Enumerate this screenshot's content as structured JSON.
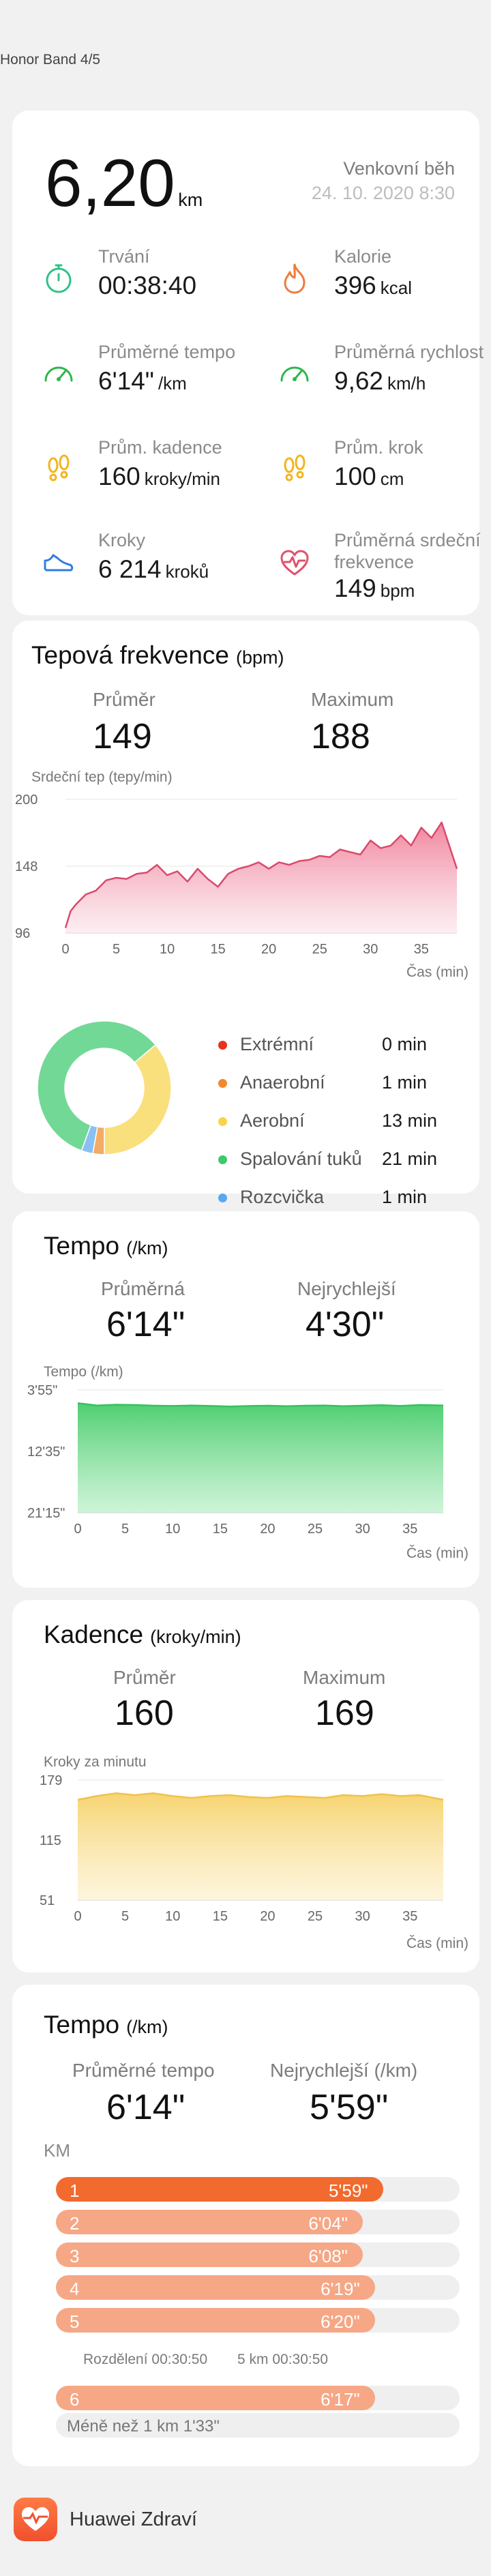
{
  "device": "Honor Band 4/5",
  "summary": {
    "distance": "6,20",
    "distance_unit": "km",
    "activity": "Venkovní běh",
    "datetime": "24. 10. 2020 8:30",
    "stats": [
      {
        "label": "Trvání",
        "value": "00:38:40",
        "unit": "",
        "icon": "stopwatch-icon",
        "color": "#2cc486"
      },
      {
        "label": "Kalorie",
        "value": "396",
        "unit": "kcal",
        "icon": "flame-icon",
        "color": "#f07a3a"
      },
      {
        "label": "Průměrné tempo",
        "value": "6'14\"",
        "unit": "/km",
        "icon": "pace-gauge-icon",
        "color": "#2cb84a"
      },
      {
        "label": "Průměrná rychlost",
        "value": "9,62",
        "unit": "km/h",
        "icon": "speedometer-icon",
        "color": "#2cb84a"
      },
      {
        "label": "Prům. kadence",
        "value": "160",
        "unit": "kroky/min",
        "icon": "footprints-icon",
        "color": "#f2b51c"
      },
      {
        "label": "Prům. krok",
        "value": "100",
        "unit": "cm",
        "icon": "footprints-icon",
        "color": "#f2b51c"
      },
      {
        "label": "Kroky",
        "value": "6 214",
        "unit": "kroků",
        "icon": "shoe-icon",
        "color": "#2f7de1"
      },
      {
        "label": "Průměrná srdeční frekvence",
        "value": "149",
        "unit": "bpm",
        "icon": "heart-pulse-icon",
        "color": "#e0506d"
      }
    ]
  },
  "heart": {
    "title": "Tepová frekvence",
    "unit": "(bpm)",
    "avg_label": "Průměr",
    "avg_value": "149",
    "max_label": "Maximum",
    "max_value": "188",
    "chart_ylabel": "Srdeční tep (tepy/min)",
    "chart_xlabel": "Čas (min)",
    "zones": [
      {
        "name": "Extrémní",
        "value": "0 min",
        "minutes": 0,
        "color": "#e8321c"
      },
      {
        "name": "Anaerobní",
        "value": "1 min",
        "minutes": 1,
        "color": "#f08a2c"
      },
      {
        "name": "Aerobní",
        "value": "13 min",
        "minutes": 13,
        "color": "#f7d44a"
      },
      {
        "name": "Spalování tuků",
        "value": "21 min",
        "minutes": 21,
        "color": "#3cc96e"
      },
      {
        "name": "Rozcvička",
        "value": "1 min",
        "minutes": 1,
        "color": "#5aa8ef"
      }
    ]
  },
  "pace": {
    "title": "Tempo",
    "unit": "(/km)",
    "avg_label": "Průměrná",
    "avg_value": "6'14\"",
    "best_label": "Nejrychlejší",
    "best_value": "4'30\"",
    "chart_ylabel": "Tempo (/km)",
    "chart_xlabel": "Čas (min)"
  },
  "cadence": {
    "title": "Kadence",
    "unit": "(kroky/min)",
    "avg_label": "Průměr",
    "avg_value": "160",
    "max_label": "Maximum",
    "max_value": "169",
    "chart_ylabel": "Kroky za minutu",
    "chart_xlabel": "Čas (min)"
  },
  "splits": {
    "title": "Tempo",
    "unit": "(/km)",
    "avg_label": "Průměrné tempo",
    "avg_value": "6'14\"",
    "best_label": "Nejrychlejší (/km)",
    "best_value": "5'59\"",
    "km_label": "KM",
    "rows": [
      {
        "km": "1",
        "pace": "5'59\"",
        "fraction": 0.81,
        "color": "#f26a2e"
      },
      {
        "km": "2",
        "pace": "6'04\"",
        "fraction": 0.76,
        "color": "#f6a785"
      },
      {
        "km": "3",
        "pace": "6'08\"",
        "fraction": 0.76,
        "color": "#f6a785"
      },
      {
        "km": "4",
        "pace": "6'19\"",
        "fraction": 0.79,
        "color": "#f6a785"
      },
      {
        "km": "5",
        "pace": "6'20\"",
        "fraction": 0.79,
        "color": "#f6a785"
      },
      {
        "km": "6",
        "pace": "6'17\"",
        "fraction": 0.79,
        "color": "#f6a785"
      }
    ],
    "split_note_a": "Rozdělení 00:30:50",
    "split_note_b": "5 km 00:30:50",
    "less_than": "Méně než 1 km 1'33\""
  },
  "footer": {
    "app_name": "Huawei Zdraví",
    "icon": "huawei-health-icon"
  },
  "chart_data": [
    {
      "type": "area",
      "title": "Tepová frekvence",
      "ylabel": "Srdeční tep (tepy/min)",
      "xlabel": "Čas (min)",
      "ylim": [
        96,
        200
      ],
      "yticks": [
        200,
        148,
        96
      ],
      "xticks": [
        0,
        5,
        10,
        15,
        20,
        25,
        30,
        35
      ],
      "x": [
        0,
        0.5,
        1,
        2,
        3,
        4,
        5,
        6,
        7,
        8,
        9,
        10,
        11,
        12,
        13,
        14,
        15,
        16,
        17,
        18,
        19,
        20,
        21,
        22,
        23,
        24,
        25,
        26,
        27,
        28,
        29,
        30,
        31,
        32,
        33,
        34,
        35,
        36,
        37,
        38.5
      ],
      "series": [
        {
          "values": [
            100,
            113,
            118,
            126,
            129,
            137,
            139,
            138,
            142,
            143,
            149,
            141,
            144,
            136,
            146,
            138,
            132,
            142,
            146,
            148,
            151,
            146,
            151,
            149,
            152,
            153,
            156,
            155,
            161,
            159,
            157,
            168,
            162,
            164,
            172,
            164,
            178,
            170,
            182,
            146
          ]
        }
      ]
    },
    {
      "type": "pie",
      "title": "Tepová frekvence",
      "categories": [
        "Extrémní",
        "Anaerobní",
        "Aerobní",
        "Spalování tuků",
        "Rozcvička"
      ],
      "values": [
        0,
        1,
        13,
        21,
        1
      ]
    },
    {
      "type": "area",
      "title": "Tempo",
      "ylabel": "Tempo (/km)",
      "xlabel": "Čas (min)",
      "yticks": [
        "3'55\"",
        "12'35\"",
        "21'15\""
      ],
      "ylim_seconds": [
        235,
        1275
      ],
      "xticks": [
        0,
        5,
        10,
        15,
        20,
        25,
        30,
        35
      ],
      "x": [
        0,
        2,
        4,
        6,
        8,
        10,
        12,
        14,
        16,
        18,
        20,
        22,
        24,
        26,
        28,
        30,
        32,
        34,
        36,
        38.5
      ],
      "series": [
        {
          "values_seconds": [
            347,
            366,
            360,
            362,
            368,
            370,
            366,
            370,
            375,
            371,
            368,
            372,
            368,
            366,
            372,
            368,
            364,
            370,
            362,
            366
          ]
        }
      ]
    },
    {
      "type": "area",
      "title": "Kadence",
      "ylabel": "Kroky za minutu",
      "xlabel": "Čas (min)",
      "ylim": [
        51,
        179
      ],
      "yticks": [
        179,
        115,
        51
      ],
      "xticks": [
        0,
        5,
        10,
        15,
        20,
        25,
        30,
        35
      ],
      "x": [
        0,
        2,
        4,
        6,
        8,
        10,
        12,
        14,
        16,
        18,
        20,
        22,
        24,
        26,
        28,
        30,
        32,
        34,
        36,
        38.5
      ],
      "series": [
        {
          "values": [
            158,
            162,
            165,
            163,
            165,
            162,
            160,
            162,
            163,
            161,
            160,
            162,
            161,
            160,
            163,
            162,
            164,
            162,
            163,
            158
          ]
        }
      ]
    }
  ]
}
